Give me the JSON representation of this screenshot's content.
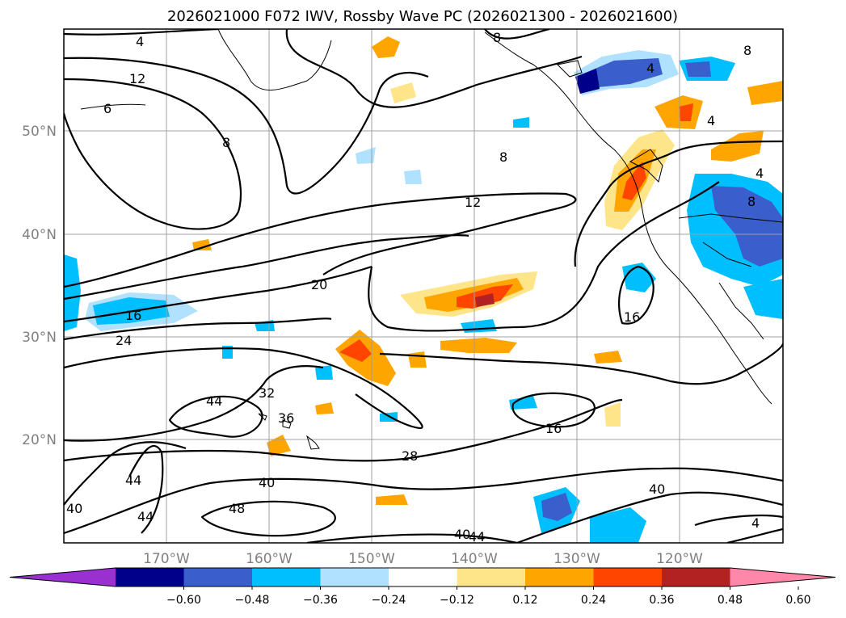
{
  "chart_data": {
    "type": "contour-map",
    "title": "2026021000 F072 IWV, Rossby Wave PC (2026021300 - 2026021600)",
    "x_ticks": [
      "170°W",
      "160°W",
      "150°W",
      "140°W",
      "130°W",
      "120°W"
    ],
    "y_ticks": [
      "50°N",
      "40°N",
      "30°N",
      "20°N"
    ],
    "grid": true,
    "colorbar": {
      "orientation": "horizontal",
      "extend": "both",
      "tick_labels": [
        "−0.60",
        "−0.48",
        "−0.36",
        "−0.24",
        "−0.12",
        "0.12",
        "0.24",
        "0.36",
        "0.48",
        "0.60"
      ],
      "colors": [
        "#9b30d0",
        "#00008b",
        "#3a5fcd",
        "#00bfff",
        "#b0e2ff",
        "#ffffff",
        "#ffe58a",
        "#ffa500",
        "#ff4500",
        "#b22222",
        "#ff88aa"
      ]
    },
    "contour_labels": [
      "4",
      "12",
      "6",
      "8",
      "8",
      "12",
      "20",
      "16",
      "24",
      "32",
      "36",
      "44",
      "44",
      "44",
      "40",
      "48",
      "28",
      "40",
      "40",
      "44",
      "16",
      "16",
      "40",
      "4",
      "4",
      "8",
      "8",
      "8",
      "4",
      "4"
    ]
  }
}
